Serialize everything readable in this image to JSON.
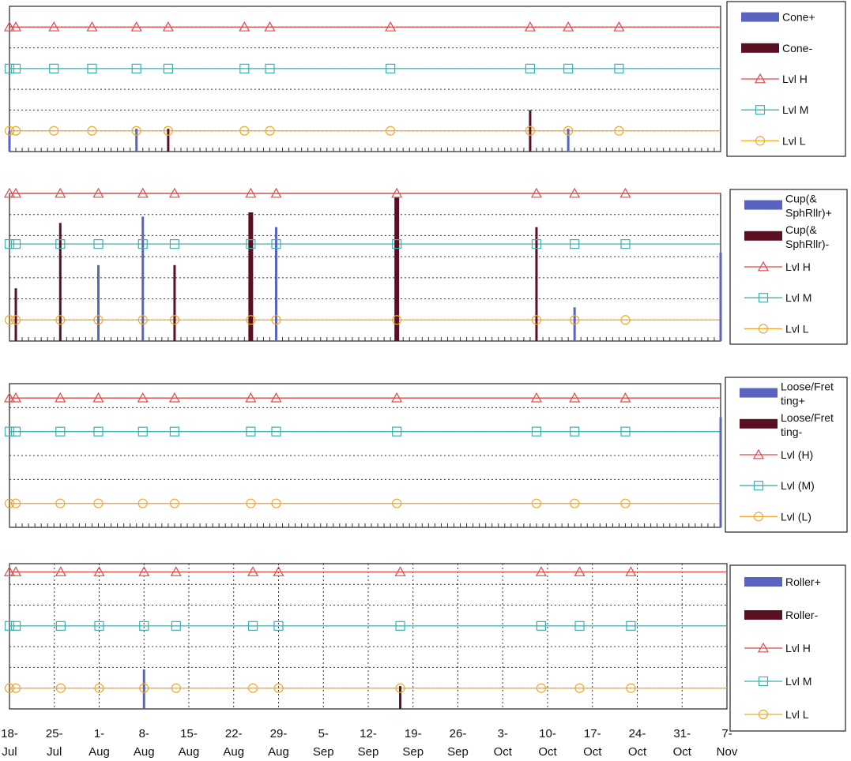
{
  "colors": {
    "pos": "#5b63c0",
    "neg": "#5a0f22",
    "lvl_h": "#e04848",
    "lvl_m": "#3cb1b1",
    "lvl_l": "#f0a830"
  },
  "chart_data": [
    {
      "type": "bar",
      "x_axis": "date",
      "x_range": [
        "2009-07-18",
        "2009-11-07"
      ],
      "y_range": [
        0,
        3.5
      ],
      "grid": "dotted-horizontal",
      "legend_position": "right",
      "legend": [
        "Cone+",
        "Cone-",
        "Lvl H",
        "Lvl M",
        "Lvl L"
      ],
      "levels": [
        {
          "name": "Lvl H",
          "y": 3.0
        },
        {
          "name": "Lvl M",
          "y": 2.0
        },
        {
          "name": "Lvl L",
          "y": 0.5
        }
      ],
      "marker_dates": [
        "2009-07-18",
        "2009-07-19",
        "2009-07-25",
        "2009-07-31",
        "2009-08-07",
        "2009-08-12",
        "2009-08-24",
        "2009-08-28",
        "2009-09-16",
        "2009-10-08",
        "2009-10-14",
        "2009-10-22"
      ],
      "series": [
        {
          "name": "Cone+",
          "points": [
            [
              "2009-07-18",
              0.5
            ],
            [
              "2009-08-07",
              0.55
            ],
            [
              "2009-10-14",
              0.55
            ]
          ]
        },
        {
          "name": "Cone-",
          "points": [
            [
              "2009-08-12",
              0.55
            ],
            [
              "2009-10-08",
              1.0
            ]
          ]
        }
      ]
    },
    {
      "type": "bar",
      "x_axis": "date",
      "x_range": [
        "2009-07-18",
        "2009-11-07"
      ],
      "y_range": [
        0,
        3.5
      ],
      "grid": "dotted-horizontal",
      "legend_position": "right",
      "legend": [
        "Cup(& SphRllr)+",
        "Cup(& SphRllr)-",
        "Lvl H",
        "Lvl M",
        "Lvl L"
      ],
      "levels": [
        {
          "name": "Lvl H",
          "y": 3.5
        },
        {
          "name": "Lvl M",
          "y": 2.3
        },
        {
          "name": "Lvl L",
          "y": 0.5
        }
      ],
      "marker_dates": [
        "2009-07-18",
        "2009-07-19",
        "2009-07-26",
        "2009-08-01",
        "2009-08-08",
        "2009-08-13",
        "2009-08-25",
        "2009-08-29",
        "2009-09-17",
        "2009-10-09",
        "2009-10-15",
        "2009-10-23"
      ],
      "series": [
        {
          "name": "Cup(& SphRllr)+",
          "points": [
            [
              "2009-08-01",
              1.8
            ],
            [
              "2009-08-08",
              2.95
            ],
            [
              "2009-08-29",
              2.7
            ],
            [
              "2009-10-15",
              0.8
            ],
            [
              "2009-11-07",
              2.1
            ]
          ]
        },
        {
          "name": "Cup(& SphRllr)-",
          "points": [
            [
              "2009-07-19",
              1.25
            ],
            [
              "2009-07-26",
              2.8
            ],
            [
              "2009-08-13",
              1.8
            ],
            [
              "2009-08-25",
              3.05
            ],
            [
              "2009-09-17",
              3.4
            ],
            [
              "2009-10-09",
              2.7
            ]
          ]
        }
      ]
    },
    {
      "type": "bar",
      "x_axis": "date",
      "x_range": [
        "2009-07-18",
        "2009-11-07"
      ],
      "y_range": [
        0,
        3.0
      ],
      "grid": "dotted-horizontal",
      "legend_position": "right",
      "legend": [
        "Loose/Fretting+",
        "Loose/Fretting-",
        "Lvl (H)",
        "Lvl (M)",
        "Lvl (L)"
      ],
      "levels": [
        {
          "name": "Lvl (H)",
          "y": 2.7
        },
        {
          "name": "Lvl (M)",
          "y": 2.0
        },
        {
          "name": "Lvl (L)",
          "y": 0.5
        }
      ],
      "marker_dates": [
        "2009-07-18",
        "2009-07-19",
        "2009-07-26",
        "2009-08-01",
        "2009-08-08",
        "2009-08-13",
        "2009-08-25",
        "2009-08-29",
        "2009-09-17",
        "2009-10-09",
        "2009-10-15",
        "2009-10-23"
      ],
      "series": [
        {
          "name": "Loose/Fretting+",
          "points": [
            [
              "2009-11-07",
              2.3
            ]
          ]
        },
        {
          "name": "Loose/Fretting-",
          "points": []
        }
      ]
    },
    {
      "type": "bar",
      "x_axis": "date",
      "x_range": [
        "2009-07-18",
        "2009-11-07"
      ],
      "y_range": [
        0,
        3.5
      ],
      "grid": "dotted-both",
      "legend_position": "right",
      "legend": [
        "Roller+",
        "Roller-",
        "Lvl H",
        "Lvl M",
        "Lvl L"
      ],
      "levels": [
        {
          "name": "Lvl H",
          "y": 3.3
        },
        {
          "name": "Lvl M",
          "y": 2.0
        },
        {
          "name": "Lvl L",
          "y": 0.5
        }
      ],
      "marker_dates": [
        "2009-07-18",
        "2009-07-19",
        "2009-07-26",
        "2009-08-01",
        "2009-08-08",
        "2009-08-13",
        "2009-08-25",
        "2009-08-29",
        "2009-09-17",
        "2009-10-09",
        "2009-10-15",
        "2009-10-23"
      ],
      "series": [
        {
          "name": "Roller+",
          "points": [
            [
              "2009-08-08",
              0.95
            ]
          ]
        },
        {
          "name": "Roller-",
          "points": [
            [
              "2009-09-17",
              0.55
            ]
          ]
        }
      ],
      "x_ticks": [
        {
          "date": "2009-07-18",
          "line1": "18-",
          "line2": "Jul"
        },
        {
          "date": "2009-07-25",
          "line1": "25-",
          "line2": "Jul"
        },
        {
          "date": "2009-08-01",
          "line1": "1-",
          "line2": "Aug"
        },
        {
          "date": "2009-08-08",
          "line1": "8-",
          "line2": "Aug"
        },
        {
          "date": "2009-08-15",
          "line1": "15-",
          "line2": "Aug"
        },
        {
          "date": "2009-08-22",
          "line1": "22-",
          "line2": "Aug"
        },
        {
          "date": "2009-08-29",
          "line1": "29-",
          "line2": "Aug"
        },
        {
          "date": "2009-09-05",
          "line1": "5-",
          "line2": "Sep"
        },
        {
          "date": "2009-09-12",
          "line1": "12-",
          "line2": "Sep"
        },
        {
          "date": "2009-09-19",
          "line1": "19-",
          "line2": "Sep"
        },
        {
          "date": "2009-09-26",
          "line1": "26-",
          "line2": "Sep"
        },
        {
          "date": "2009-10-03",
          "line1": "3-",
          "line2": "Oct"
        },
        {
          "date": "2009-10-10",
          "line1": "10-",
          "line2": "Oct"
        },
        {
          "date": "2009-10-17",
          "line1": "17-",
          "line2": "Oct"
        },
        {
          "date": "2009-10-24",
          "line1": "24-",
          "line2": "Oct"
        },
        {
          "date": "2009-10-31",
          "line1": "31-",
          "line2": "Oct"
        },
        {
          "date": "2009-11-07",
          "line1": "7-",
          "line2": "Nov"
        }
      ]
    }
  ]
}
